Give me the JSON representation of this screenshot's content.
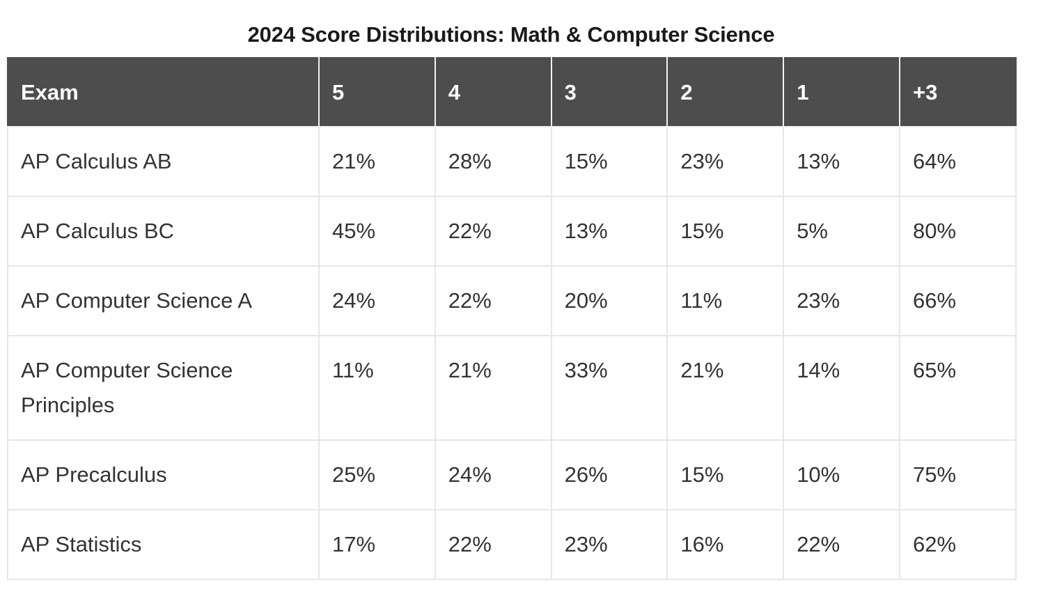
{
  "title": "2024 Score Distributions: Math & Computer Science",
  "columns": [
    "Exam",
    "5",
    "4",
    "3",
    "2",
    "1",
    "+3"
  ],
  "rows": [
    {
      "exam": "AP Calculus AB",
      "values": [
        "21%",
        "28%",
        "15%",
        "23%",
        "13%",
        "64%"
      ]
    },
    {
      "exam": "AP Calculus BC",
      "values": [
        "45%",
        "22%",
        "13%",
        "15%",
        "5%",
        "80%"
      ]
    },
    {
      "exam": "AP Computer Science A",
      "values": [
        "24%",
        "22%",
        "20%",
        "11%",
        "23%",
        "66%"
      ]
    },
    {
      "exam": "AP Computer Science Principles",
      "values": [
        "11%",
        "21%",
        "33%",
        "21%",
        "14%",
        "65%"
      ]
    },
    {
      "exam": "AP Precalculus",
      "values": [
        "25%",
        "24%",
        "26%",
        "15%",
        "10%",
        "75%"
      ]
    },
    {
      "exam": "AP Statistics",
      "values": [
        "17%",
        "22%",
        "23%",
        "16%",
        "22%",
        "62%"
      ]
    }
  ],
  "colors": {
    "header_bg": "#4d4d4d",
    "header_text": "#ffffff",
    "grid": "#e6e6e6",
    "body_text": "#333333"
  }
}
